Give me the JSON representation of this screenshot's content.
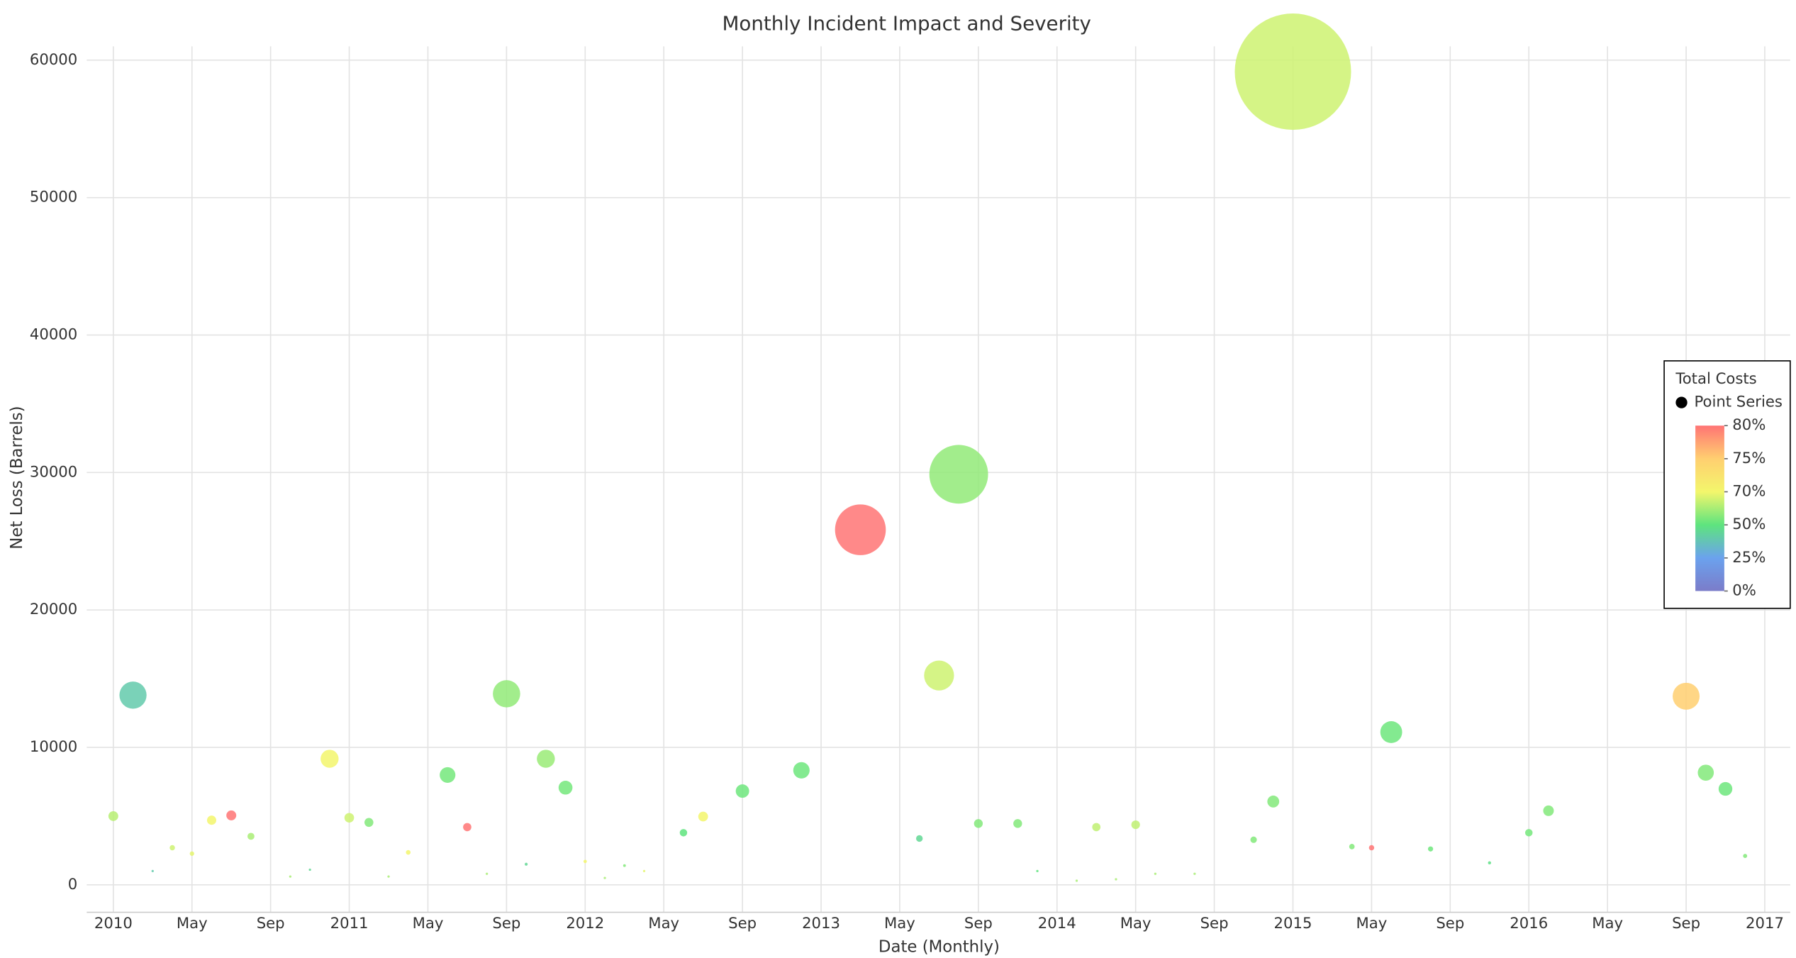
{
  "chart_data": {
    "type": "bubble",
    "title": "Monthly Incident Impact and Severity",
    "x_label": "Date (Monthly)",
    "y_label": "Net Loss (Barrels)",
    "x": [
      "2010-01",
      "2010-02",
      "2010-03",
      "2010-04",
      "2010-05",
      "2010-06",
      "2010-07",
      "2010-08",
      "2010-10",
      "2010-11",
      "2010-12",
      "2011-01",
      "2011-02",
      "2011-03",
      "2011-04",
      "2011-06",
      "2011-07",
      "2011-08",
      "2011-09",
      "2011-10",
      "2011-11",
      "2011-12",
      "2012-01",
      "2012-02",
      "2012-03",
      "2012-04",
      "2012-06",
      "2012-07",
      "2012-09",
      "2012-12",
      "2013-03",
      "2013-06",
      "2013-07",
      "2013-08",
      "2013-09",
      "2013-11",
      "2013-12",
      "2014-02",
      "2014-03",
      "2014-04",
      "2014-05",
      "2014-06",
      "2014-08",
      "2014-11",
      "2014-12",
      "2015-01",
      "2015-04",
      "2015-05",
      "2015-06",
      "2015-08",
      "2015-11",
      "2016-01",
      "2016-02",
      "2016-09",
      "2016-10",
      "2016-11",
      "2016-12"
    ],
    "series": [
      {
        "name": "Point Series",
        "values": [
          5000,
          13800,
          1000,
          2700,
          2270,
          4700,
          5050,
          3530,
          600,
          1100,
          9170,
          4880,
          4540,
          600,
          2360,
          7990,
          4200,
          800,
          13900,
          1500,
          9170,
          7070,
          1700,
          500,
          1400,
          1000,
          3790,
          4970,
          6820,
          8330,
          25830,
          3370,
          15230,
          29870,
          4460,
          4460,
          1000,
          300,
          4200,
          400,
          4370,
          800,
          800,
          3280,
          6060,
          59160,
          2780,
          2700,
          11110,
          2610,
          1600,
          3790,
          5390,
          13720,
          8160,
          6980,
          2100
        ],
        "color_values": [
          62,
          40,
          40,
          65,
          68,
          70,
          80,
          60,
          60,
          45,
          70,
          65,
          55,
          60,
          70,
          53,
          80,
          60,
          57,
          45,
          58,
          53,
          70,
          60,
          55,
          68,
          50,
          70,
          52,
          52,
          80,
          45,
          65,
          57,
          55,
          55,
          50,
          60,
          63,
          60,
          63,
          60,
          60,
          55,
          55,
          65,
          55,
          80,
          52,
          52,
          48,
          53,
          55,
          75,
          55,
          52,
          55
        ]
      }
    ],
    "xlim": [
      "2009-12",
      "2017-02"
    ],
    "xticks": [
      {
        "value": "2010-01",
        "label": "2010"
      },
      {
        "value": "2010-05",
        "label": "May"
      },
      {
        "value": "2010-09",
        "label": "Sep"
      },
      {
        "value": "2011-01",
        "label": "2011"
      },
      {
        "value": "2011-05",
        "label": "May"
      },
      {
        "value": "2011-09",
        "label": "Sep"
      },
      {
        "value": "2012-01",
        "label": "2012"
      },
      {
        "value": "2012-05",
        "label": "May"
      },
      {
        "value": "2012-09",
        "label": "Sep"
      },
      {
        "value": "2013-01",
        "label": "2013"
      },
      {
        "value": "2013-05",
        "label": "May"
      },
      {
        "value": "2013-09",
        "label": "Sep"
      },
      {
        "value": "2014-01",
        "label": "2014"
      },
      {
        "value": "2014-05",
        "label": "May"
      },
      {
        "value": "2014-09",
        "label": "Sep"
      },
      {
        "value": "2015-01",
        "label": "2015"
      },
      {
        "value": "2015-05",
        "label": "May"
      },
      {
        "value": "2015-09",
        "label": "Sep"
      },
      {
        "value": "2016-01",
        "label": "2016"
      },
      {
        "value": "2016-05",
        "label": "May"
      },
      {
        "value": "2016-09",
        "label": "Sep"
      },
      {
        "value": "2017-01",
        "label": "2017"
      }
    ],
    "ylim": [
      -2000,
      61000
    ],
    "yticks": [
      0,
      10000,
      20000,
      30000,
      40000,
      50000,
      60000
    ],
    "grid": true,
    "legend": {
      "title": "Total Costs",
      "position": "right"
    },
    "colorscale": [
      {
        "value": 80,
        "label": "80%",
        "color": "#ff7474"
      },
      {
        "value": 75,
        "label": "75%",
        "color": "#ffcf70"
      },
      {
        "value": 70,
        "label": "70%",
        "color": "#f3f66c"
      },
      {
        "value": 50,
        "label": "50%",
        "color": "#5ee47e"
      },
      {
        "value": 25,
        "label": "25%",
        "color": "#6ba2ee"
      },
      {
        "value": 0,
        "label": "0%",
        "color": "#7b7cc9"
      }
    ]
  }
}
